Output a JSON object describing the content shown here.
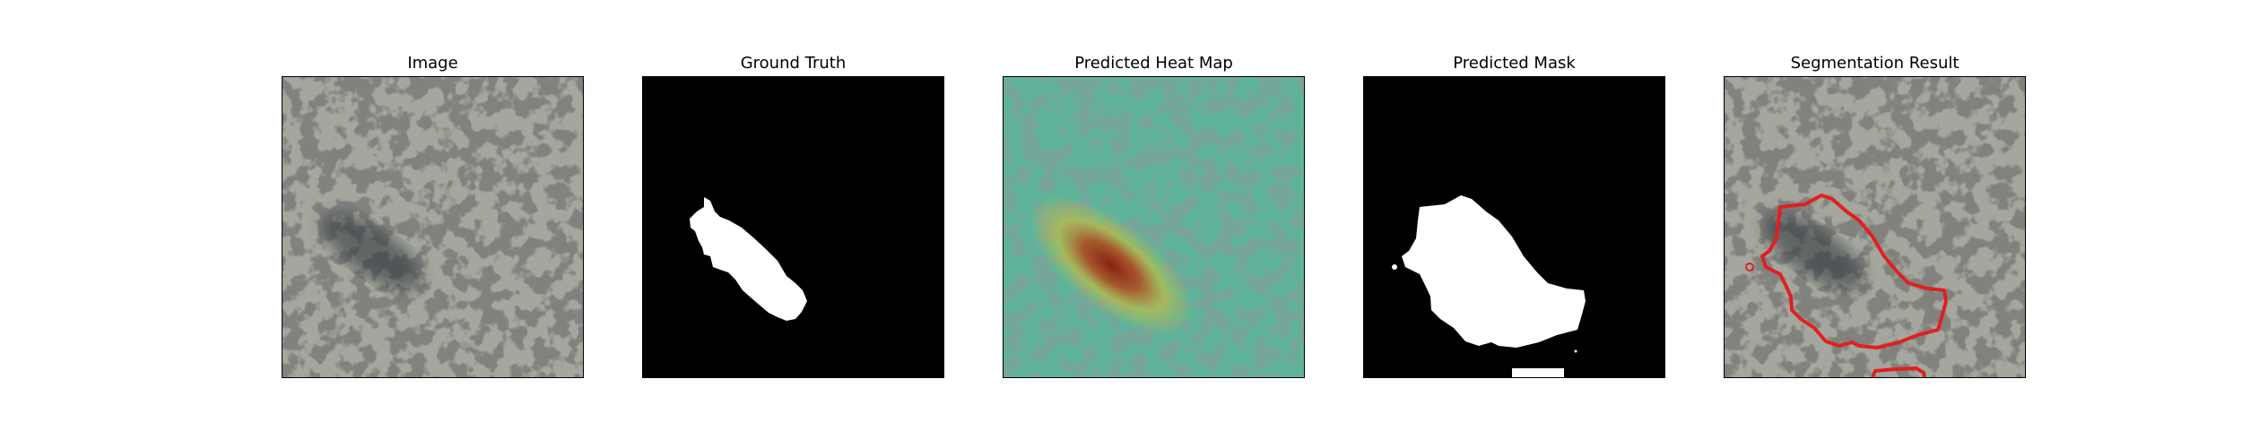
{
  "figure": {
    "panels": [
      {
        "title": "Image"
      },
      {
        "title": "Ground Truth"
      },
      {
        "title": "Predicted Heat Map"
      },
      {
        "title": "Predicted Mask"
      },
      {
        "title": "Segmentation Result"
      }
    ]
  },
  "colors": {
    "background": "#ffffff",
    "texture_light": "#a4a79d",
    "texture_dark": "#3c3c3a",
    "mask_foreground": "#ffffff",
    "mask_background": "#000000",
    "heatmap_low": "#4fa890",
    "heatmap_mid": "#c8c23a",
    "heatmap_high": "#8a1a0a",
    "contour": "#e02020"
  }
}
